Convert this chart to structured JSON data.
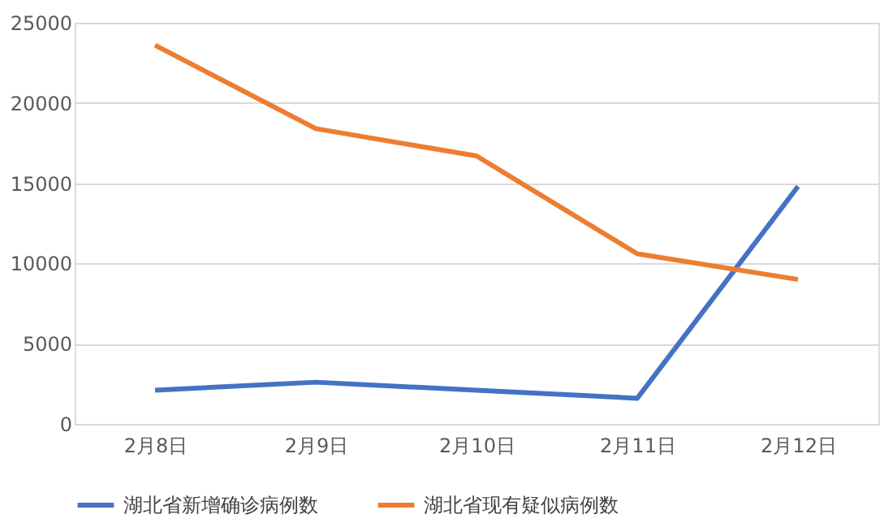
{
  "chart_data": {
    "type": "line",
    "categories": [
      "2月8日",
      "2月9日",
      "2月10日",
      "2月11日",
      "2月12日"
    ],
    "series": [
      {
        "name": "湖北省新增确诊病例数",
        "color": "#4472c4",
        "values": [
          2100,
          2600,
          2100,
          1600,
          14800
        ]
      },
      {
        "name": "湖北省现有疑似病例数",
        "color": "#ed7d31",
        "values": [
          23600,
          18400,
          16700,
          10600,
          9000
        ]
      }
    ],
    "ylim": [
      0,
      25000
    ],
    "yticks": [
      0,
      5000,
      10000,
      15000,
      20000,
      25000
    ],
    "grid": "y",
    "legend": "bottom",
    "marker": "none",
    "line_style": "solid"
  }
}
